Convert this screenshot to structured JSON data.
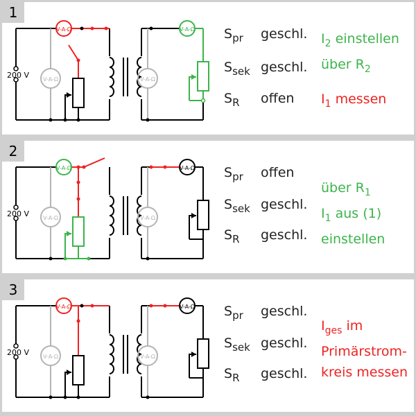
{
  "supply_voltage": "200 V",
  "meter_label": "V-A-Ω",
  "switch_names": {
    "primary": {
      "base": "S",
      "sub": "pr"
    },
    "secondary": {
      "base": "S",
      "sub": "sek"
    },
    "resistor": {
      "base": "S",
      "sub": "R"
    }
  },
  "colors": {
    "red": "#ee2222",
    "green": "#3cb44b",
    "wire": "#000000",
    "inactive": "#b4b4b4",
    "panel_bg": "#ffffff",
    "frame_bg": "#d0d0d0"
  },
  "panels": [
    {
      "number": "1",
      "states": {
        "primary": "geschl.",
        "secondary": "geschl.",
        "resistor": "offen"
      },
      "instructions": [
        {
          "color": "green",
          "lines": [
            {
              "segments": [
                {
                  "text": "I"
                },
                {
                  "text": "2",
                  "sub": true
                },
                {
                  "text": " einstellen"
                }
              ]
            },
            {
              "segments": [
                {
                  "text": "über R"
                },
                {
                  "text": "2",
                  "sub": true
                }
              ]
            }
          ]
        },
        {
          "color": "red",
          "lines": [
            {
              "segments": [
                {
                  "text": "I"
                },
                {
                  "text": "1",
                  "sub": true
                },
                {
                  "text": " messen"
                }
              ]
            }
          ]
        }
      ]
    },
    {
      "number": "2",
      "states": {
        "primary": "offen",
        "secondary": "geschl.",
        "resistor": "geschl."
      },
      "instructions": [
        {
          "color": "green",
          "lines": [
            {
              "segments": [
                {
                  "text": "über R"
                },
                {
                  "text": "1",
                  "sub": true
                }
              ]
            },
            {
              "segments": [
                {
                  "text": "I"
                },
                {
                  "text": "1",
                  "sub": true
                },
                {
                  "text": " aus (1)"
                }
              ]
            },
            {
              "segments": [
                {
                  "text": "einstellen"
                }
              ]
            }
          ]
        }
      ]
    },
    {
      "number": "3",
      "states": {
        "primary": "geschl.",
        "secondary": "geschl.",
        "resistor": "geschl."
      },
      "instructions": [
        {
          "color": "red",
          "lines": [
            {
              "segments": [
                {
                  "text": "I"
                },
                {
                  "text": "ges",
                  "sub": true
                },
                {
                  "text": " im"
                }
              ]
            },
            {
              "segments": [
                {
                  "text": "Primärstrom-"
                }
              ]
            },
            {
              "segments": [
                {
                  "text": "kreis messen"
                }
              ]
            }
          ]
        }
      ]
    }
  ]
}
